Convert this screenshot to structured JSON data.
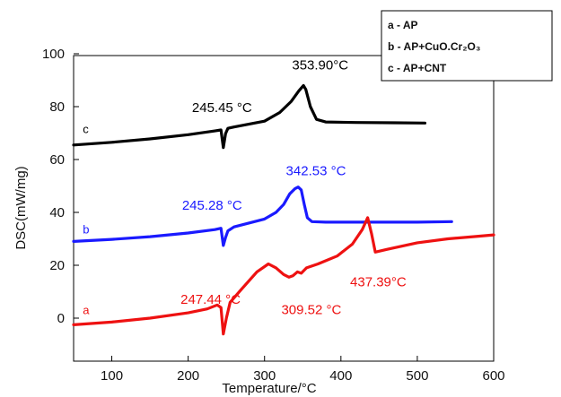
{
  "chart_data": {
    "type": "line",
    "title": "",
    "xlabel": "Temperature/°C",
    "ylabel": "DSC(mW/mg)",
    "xlim": [
      50,
      600
    ],
    "ylim": [
      -10,
      100
    ],
    "xticks": [
      100,
      200,
      300,
      400,
      500,
      600
    ],
    "xtick_labels": [
      "100",
      "200",
      "300",
      "400",
      "500",
      "600"
    ],
    "yticks": [
      0,
      20,
      40,
      60,
      80,
      100
    ],
    "ytick_labels": [
      "0",
      "20",
      "40",
      "60",
      "80",
      "100"
    ],
    "grid": false,
    "legend_position": "top-right",
    "legend": [
      "a -  AP",
      "b - AP+CuO.Cr₂O₃",
      "c - AP+CNT"
    ],
    "series": [
      {
        "label": "c",
        "color": "#000000",
        "x": [
          50,
          100,
          150,
          200,
          235,
          243,
          246,
          249,
          252,
          260,
          300,
          320,
          335,
          345,
          351,
          354,
          360,
          368,
          380,
          420,
          470,
          510
        ],
        "y": [
          65.5,
          66.5,
          67.8,
          69.4,
          70.8,
          71.2,
          64.5,
          69.8,
          71.8,
          72.3,
          74.5,
          77.8,
          82.0,
          86.0,
          88.0,
          86.5,
          80.0,
          75.2,
          74.2,
          74.0,
          73.9,
          73.8
        ]
      },
      {
        "label": "b",
        "color": "#1a1aff",
        "x": [
          50,
          100,
          150,
          200,
          235,
          243,
          246,
          249,
          252,
          260,
          280,
          300,
          315,
          325,
          333,
          340,
          344,
          348,
          352,
          356,
          362,
          380,
          450,
          500,
          545
        ],
        "y": [
          29.0,
          29.8,
          30.8,
          32.2,
          33.5,
          34.0,
          27.5,
          30.5,
          33.0,
          34.5,
          36.0,
          37.5,
          40.0,
          43.0,
          47.0,
          49.0,
          49.6,
          48.5,
          43.0,
          38.0,
          36.5,
          36.3,
          36.3,
          36.3,
          36.5
        ]
      },
      {
        "label": "a",
        "color": "#ee1111",
        "x": [
          50,
          100,
          150,
          200,
          225,
          238,
          243,
          246,
          250,
          255,
          270,
          290,
          305,
          315,
          325,
          332,
          337,
          343,
          348,
          355,
          370,
          395,
          415,
          428,
          435,
          440,
          445,
          460,
          500,
          540,
          580,
          600
        ],
        "y": [
          -2.5,
          -1.5,
          0.0,
          2.0,
          3.5,
          5.0,
          4.0,
          -6.0,
          0.0,
          6.0,
          11.0,
          17.5,
          20.5,
          19.0,
          16.5,
          15.5,
          16.0,
          17.5,
          17.0,
          19.0,
          20.5,
          23.5,
          28.0,
          33.5,
          38.0,
          32.0,
          25.0,
          26.0,
          28.5,
          30.0,
          31.0,
          31.5
        ]
      }
    ],
    "curve_labels": [
      {
        "text": "c",
        "x": 62,
        "y": 70,
        "color": "#000000"
      },
      {
        "text": "b",
        "x": 62,
        "y": 32,
        "color": "#1a1aff"
      },
      {
        "text": "a",
        "x": 62,
        "y": 1.5,
        "color": "#ee1111"
      }
    ],
    "annotations": [
      {
        "text": "353.90°C",
        "x": 336,
        "y": 94,
        "color": "#000000"
      },
      {
        "text": "245.45 °C",
        "x": 205,
        "y": 78,
        "color": "#000000"
      },
      {
        "text": "342.53 °C",
        "x": 328,
        "y": 54,
        "color": "#1a1aff"
      },
      {
        "text": "245.28 °C",
        "x": 192,
        "y": 41,
        "color": "#1a1aff"
      },
      {
        "text": "247.44 °C",
        "x": 190,
        "y": 5.5,
        "color": "#ee1111"
      },
      {
        "text": "309.52 °C",
        "x": 322,
        "y": 1.5,
        "color": "#ee1111"
      },
      {
        "text": "437.39°C",
        "x": 412,
        "y": 12,
        "color": "#ee1111"
      }
    ]
  }
}
